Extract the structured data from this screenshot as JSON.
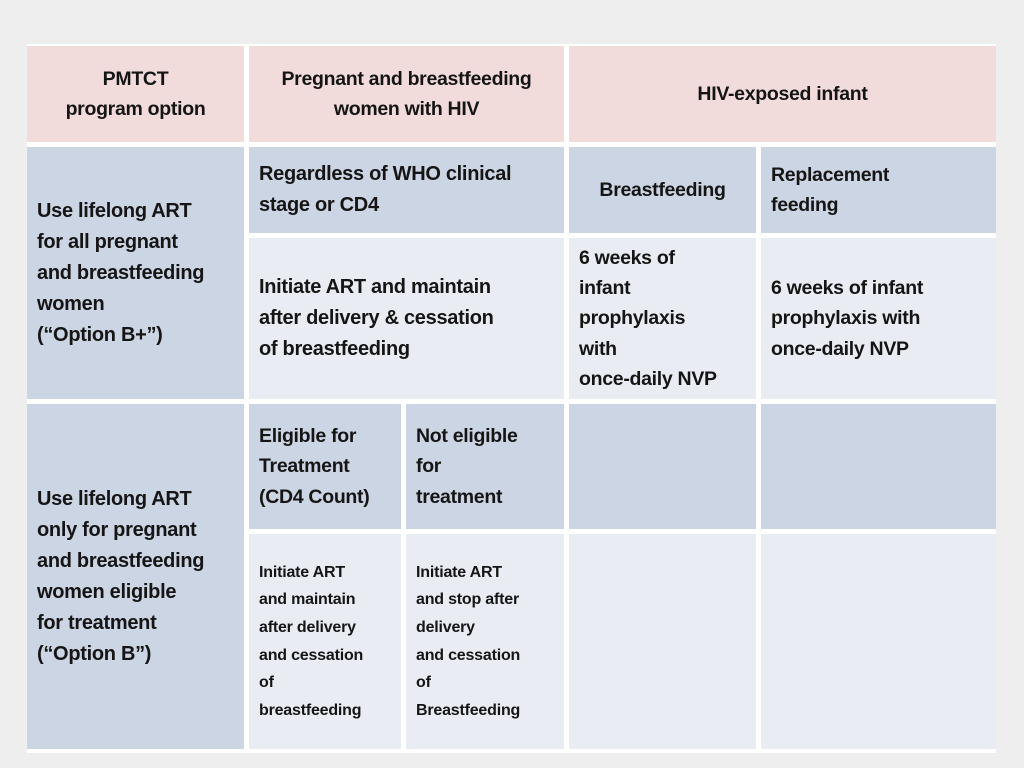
{
  "colors": {
    "page_bg": "#eeeeee",
    "header_bg": "#f2dcdb",
    "row_dark_bg": "#ccd5e3",
    "row_light_bg": "#e9edf3",
    "border": "#ffffff",
    "text": "#151515"
  },
  "table": {
    "header": {
      "program_option": "PMTCT\nprogram option",
      "women": "Pregnant and breastfeeding\nwomen with HIV",
      "infant": "HIV-exposed infant"
    },
    "option_b_plus": {
      "label": "Use lifelong ART\nfor all pregnant\nand breastfeeding\nwomen\n(“Option B+”)",
      "criteria": "Regardless of WHO clinical\nstage or CD4",
      "breastfeeding_header": "Breastfeeding",
      "replacement_header": "Replacement\nfeeding",
      "maternal_regimen": "Initiate ART and maintain\nafter delivery & cessation\nof breastfeeding",
      "infant_breastfeeding": "6 weeks of\ninfant\nprophylaxis\nwith\nonce-daily NVP",
      "infant_replacement": "6 weeks of infant\nprophylaxis with\nonce-daily NVP"
    },
    "option_b": {
      "label": "Use lifelong ART\nonly for pregnant\nand breastfeeding\nwomen eligible\nfor treatment\n(“Option B”)",
      "eligible_header": "Eligible for\nTreatment\n(CD4 Count)",
      "not_eligible_header": "Not eligible\nfor\ntreatment",
      "eligible_regimen": "Initiate ART\nand maintain\nafter delivery\nand cessation\nof\nbreastfeeding",
      "not_eligible_regimen": "Initiate ART\nand stop after\ndelivery\nand cessation\nof\nBreastfeeding"
    }
  }
}
